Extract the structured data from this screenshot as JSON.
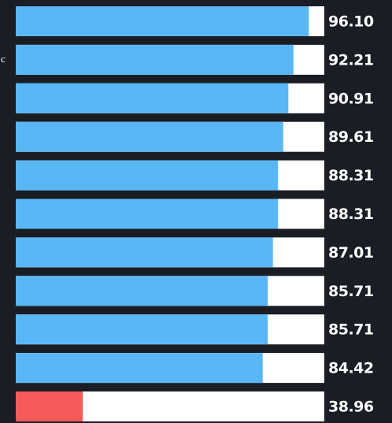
{
  "chart_data": {
    "type": "bar",
    "orientation": "horizontal",
    "categories": [
      null,
      "c",
      null,
      null,
      null,
      null,
      null,
      null,
      null,
      null,
      null
    ],
    "values": [
      96.1,
      92.21,
      90.91,
      89.61,
      88.31,
      88.31,
      87.01,
      85.71,
      85.71,
      84.42,
      38.96
    ],
    "value_labels": [
      "96.10",
      "92.21",
      "90.91",
      "89.61",
      "88.31",
      "88.31",
      "87.01",
      "85.71",
      "85.71",
      "84.42",
      "38.96"
    ],
    "colors": [
      "#59b7f6",
      "#59b7f6",
      "#59b7f6",
      "#59b7f6",
      "#59b7f6",
      "#59b7f6",
      "#59b7f6",
      "#59b7f6",
      "#59b7f6",
      "#59b7f6",
      "#f75a5a"
    ],
    "track_color": "#ffffff",
    "xlim": [
      22,
      100
    ]
  }
}
